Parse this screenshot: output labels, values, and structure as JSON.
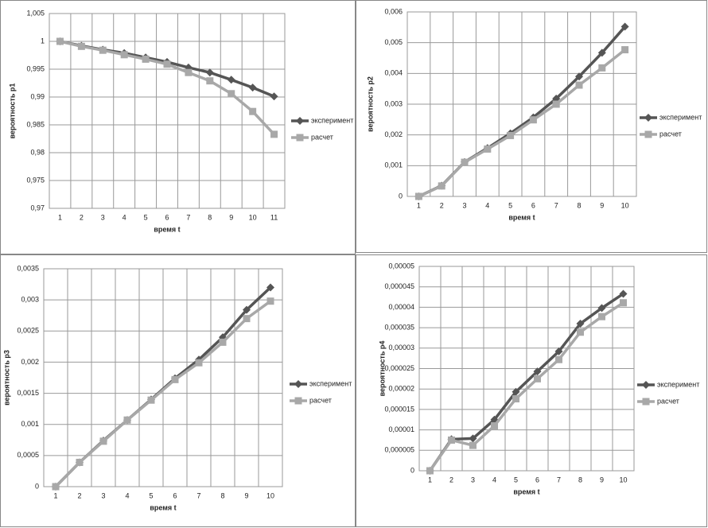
{
  "chart_data": [
    {
      "type": "line",
      "ylabel": "вероятность р1",
      "xlabel": "время t",
      "categories": [
        "1",
        "2",
        "3",
        "4",
        "5",
        "6",
        "7",
        "8",
        "9",
        "10",
        "11"
      ],
      "series": [
        {
          "name": "эксперимент",
          "color": "#555555",
          "marker": "diamond",
          "values": [
            1.0,
            0.9992,
            0.9985,
            0.9979,
            0.9971,
            0.9963,
            0.9953,
            0.9944,
            0.9931,
            0.9917,
            0.9901
          ]
        },
        {
          "name": "расчет",
          "color": "#a8a8a8",
          "marker": "square",
          "values": [
            1.0,
            0.9991,
            0.9984,
            0.9976,
            0.9968,
            0.9959,
            0.9944,
            0.9929,
            0.9906,
            0.9874,
            0.9833
          ]
        }
      ],
      "ylim": [
        0.97,
        1.005
      ],
      "yticks": [
        {
          "value": 0.97,
          "label": "0,97"
        },
        {
          "value": 0.975,
          "label": "0,975"
        },
        {
          "value": 0.98,
          "label": "0,98"
        },
        {
          "value": 0.985,
          "label": "0,985"
        },
        {
          "value": 0.99,
          "label": "0,99"
        },
        {
          "value": 0.995,
          "label": "0,995"
        },
        1,
        {
          "value": 1.005,
          "label": "1,005"
        }
      ],
      "grid": true,
      "legend": "right"
    },
    {
      "type": "line",
      "ylabel": "вероятность р2",
      "xlabel": "время t",
      "categories": [
        "1",
        "2",
        "3",
        "4",
        "5",
        "6",
        "7",
        "8",
        "9",
        "10"
      ],
      "series": [
        {
          "name": "эксперимент",
          "color": "#555555",
          "marker": "diamond",
          "values": [
            0,
            0.00035,
            0.00112,
            0.00157,
            0.00205,
            0.00257,
            0.00318,
            0.0039,
            0.00467,
            0.00552
          ]
        },
        {
          "name": "расчет",
          "color": "#a8a8a8",
          "marker": "square",
          "values": [
            0,
            0.00034,
            0.00111,
            0.00154,
            0.00198,
            0.00249,
            0.003,
            0.00362,
            0.00418,
            0.00477
          ]
        }
      ],
      "ylim": [
        0,
        0.006
      ],
      "yticks": [
        0,
        {
          "value": 0.001,
          "label": "0,001"
        },
        {
          "value": 0.002,
          "label": "0,002"
        },
        {
          "value": 0.003,
          "label": "0,003"
        },
        {
          "value": 0.004,
          "label": "0,004"
        },
        {
          "value": 0.005,
          "label": "0,005"
        },
        {
          "value": 0.006,
          "label": "0,006"
        }
      ],
      "grid": true,
      "legend": "right"
    },
    {
      "type": "line",
      "ylabel": "вероятность р3",
      "xlabel": "время t",
      "categories": [
        "1",
        "2",
        "3",
        "4",
        "5",
        "6",
        "7",
        "8",
        "9",
        "10"
      ],
      "series": [
        {
          "name": "эксперимент",
          "color": "#555555",
          "marker": "diamond",
          "values": [
            0,
            0.00039,
            0.00074,
            0.00107,
            0.0014,
            0.00174,
            0.00204,
            0.0024,
            0.00284,
            0.0032
          ]
        },
        {
          "name": "расчет",
          "color": "#a8a8a8",
          "marker": "square",
          "values": [
            0,
            0.00039,
            0.00073,
            0.00107,
            0.00139,
            0.00172,
            0.00199,
            0.00232,
            0.0027,
            0.00298
          ]
        }
      ],
      "ylim": [
        0,
        0.0035
      ],
      "yticks": [
        0,
        {
          "value": 0.0005,
          "label": "0,0005"
        },
        {
          "value": 0.001,
          "label": "0,001"
        },
        {
          "value": 0.0015,
          "label": "0,0015"
        },
        {
          "value": 0.002,
          "label": "0,002"
        },
        {
          "value": 0.0025,
          "label": "0,0025"
        },
        {
          "value": 0.003,
          "label": "0,003"
        },
        {
          "value": 0.0035,
          "label": "0,0035"
        }
      ],
      "grid": true,
      "legend": "right"
    },
    {
      "type": "line",
      "ylabel": "вероятность р4",
      "xlabel": "время t",
      "categories": [
        "1",
        "2",
        "3",
        "4",
        "5",
        "6",
        "7",
        "8",
        "9",
        "10"
      ],
      "series": [
        {
          "name": "эксперимент",
          "color": "#555555",
          "marker": "diamond",
          "values": [
            0,
            7.7e-06,
            7.9e-06,
            1.25e-05,
            1.93e-05,
            2.43e-05,
            2.92e-05,
            3.6e-05,
            3.98e-05,
            4.33e-05
          ]
        },
        {
          "name": "расчет",
          "color": "#a8a8a8",
          "marker": "square",
          "values": [
            0,
            7.5e-06,
            6.2e-06,
            1.1e-05,
            1.76e-05,
            2.25e-05,
            2.72e-05,
            3.39e-05,
            3.77e-05,
            4.11e-05
          ]
        }
      ],
      "ylim": [
        0,
        5e-05
      ],
      "yticks": [
        0,
        {
          "value": 5e-06,
          "label": "0,000005"
        },
        {
          "value": 1e-05,
          "label": "0,00001"
        },
        {
          "value": 1.5e-05,
          "label": "0,000015"
        },
        {
          "value": 2e-05,
          "label": "0,00002"
        },
        {
          "value": 2.5e-05,
          "label": "0,000025"
        },
        {
          "value": 3e-05,
          "label": "0,00003"
        },
        {
          "value": 3.5e-05,
          "label": "0,000035"
        },
        {
          "value": 4e-05,
          "label": "0,00004"
        },
        {
          "value": 4.5e-05,
          "label": "0,000045"
        },
        {
          "value": 5e-05,
          "label": "0,00005"
        }
      ],
      "grid": true,
      "legend": "right"
    }
  ]
}
